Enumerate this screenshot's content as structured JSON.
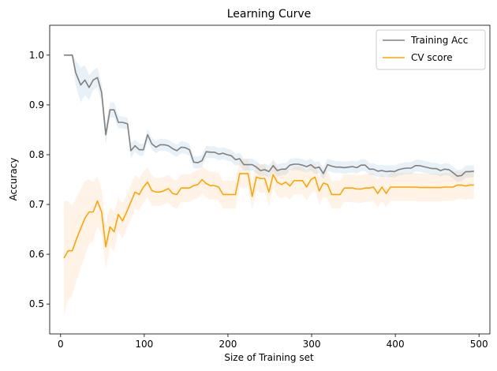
{
  "chart_data": {
    "type": "line",
    "title": "Learning Curve",
    "xlabel": "Size of Training set",
    "ylabel": "Accuracy",
    "xlim": [
      -13,
      513
    ],
    "ylim": [
      0.44,
      1.06
    ],
    "xticks": [
      0,
      100,
      200,
      300,
      400,
      500
    ],
    "yticks": [
      0.5,
      0.6,
      0.7,
      0.8,
      0.9,
      1.0
    ],
    "grid": false,
    "legend_position": "top-right",
    "series": [
      {
        "name": "Training Acc",
        "color": "#808080",
        "band_color": "#1f77b4",
        "points": [
          [
            4,
            1.0
          ],
          [
            8,
            1.0
          ],
          [
            14,
            1.0
          ],
          [
            18,
            0.965
          ],
          [
            24,
            0.94
          ],
          [
            29,
            0.95
          ],
          [
            34,
            0.935
          ],
          [
            39,
            0.95
          ],
          [
            44,
            0.955
          ],
          [
            49,
            0.925
          ],
          [
            54,
            0.84
          ],
          [
            59,
            0.89
          ],
          [
            64,
            0.89
          ],
          [
            69,
            0.865
          ],
          [
            74,
            0.865
          ],
          [
            80,
            0.862
          ],
          [
            84,
            0.808
          ],
          [
            89,
            0.818
          ],
          [
            94,
            0.81
          ],
          [
            99,
            0.81
          ],
          [
            104,
            0.84
          ],
          [
            109,
            0.822
          ],
          [
            114,
            0.815
          ],
          [
            119,
            0.82
          ],
          [
            124,
            0.82
          ],
          [
            129,
            0.818
          ],
          [
            134,
            0.812
          ],
          [
            139,
            0.808
          ],
          [
            144,
            0.815
          ],
          [
            149,
            0.814
          ],
          [
            154,
            0.81
          ],
          [
            159,
            0.785
          ],
          [
            164,
            0.784
          ],
          [
            169,
            0.788
          ],
          [
            174,
            0.806
          ],
          [
            179,
            0.805
          ],
          [
            184,
            0.805
          ],
          [
            189,
            0.801
          ],
          [
            194,
            0.803
          ],
          [
            199,
            0.8
          ],
          [
            204,
            0.798
          ],
          [
            209,
            0.79
          ],
          [
            214,
            0.792
          ],
          [
            219,
            0.78
          ],
          [
            224,
            0.78
          ],
          [
            229,
            0.78
          ],
          [
            234,
            0.775
          ],
          [
            239,
            0.768
          ],
          [
            244,
            0.77
          ],
          [
            249,
            0.766
          ],
          [
            254,
            0.778
          ],
          [
            259,
            0.768
          ],
          [
            264,
            0.771
          ],
          [
            269,
            0.771
          ],
          [
            274,
            0.779
          ],
          [
            279,
            0.781
          ],
          [
            284,
            0.781
          ],
          [
            289,
            0.779
          ],
          [
            294,
            0.776
          ],
          [
            299,
            0.78
          ],
          [
            304,
            0.773
          ],
          [
            309,
            0.775
          ],
          [
            314,
            0.762
          ],
          [
            319,
            0.78
          ],
          [
            324,
            0.777
          ],
          [
            329,
            0.775
          ],
          [
            334,
            0.775
          ],
          [
            339,
            0.774
          ],
          [
            344,
            0.775
          ],
          [
            349,
            0.776
          ],
          [
            354,
            0.774
          ],
          [
            359,
            0.779
          ],
          [
            364,
            0.779
          ],
          [
            369,
            0.771
          ],
          [
            374,
            0.771
          ],
          [
            379,
            0.767
          ],
          [
            384,
            0.768
          ],
          [
            389,
            0.766
          ],
          [
            394,
            0.767
          ],
          [
            399,
            0.766
          ],
          [
            404,
            0.77
          ],
          [
            409,
            0.772
          ],
          [
            414,
            0.773
          ],
          [
            419,
            0.773
          ],
          [
            424,
            0.778
          ],
          [
            429,
            0.778
          ],
          [
            434,
            0.776
          ],
          [
            439,
            0.774
          ],
          [
            444,
            0.772
          ],
          [
            449,
            0.772
          ],
          [
            454,
            0.768
          ],
          [
            459,
            0.771
          ],
          [
            464,
            0.77
          ],
          [
            469,
            0.764
          ],
          [
            474,
            0.757
          ],
          [
            479,
            0.758
          ],
          [
            484,
            0.766
          ],
          [
            489,
            0.766
          ],
          [
            494,
            0.767
          ]
        ],
        "band_halfwidth": [
          0.001,
          0.001,
          0.003,
          0.025,
          0.035,
          0.03,
          0.025,
          0.02,
          0.02,
          0.02,
          0.02,
          0.015,
          0.015,
          0.012,
          0.012,
          0.012,
          0.015,
          0.012,
          0.012,
          0.012,
          0.012,
          0.012,
          0.012,
          0.012,
          0.012,
          0.012,
          0.012,
          0.012,
          0.012,
          0.012,
          0.012,
          0.012,
          0.012,
          0.012,
          0.012,
          0.012,
          0.012,
          0.012,
          0.012,
          0.012,
          0.012,
          0.012,
          0.012,
          0.012,
          0.012,
          0.012,
          0.012,
          0.012,
          0.012,
          0.012,
          0.012,
          0.012,
          0.012,
          0.012,
          0.012,
          0.012,
          0.012,
          0.012,
          0.012,
          0.012,
          0.012,
          0.012,
          0.012,
          0.012,
          0.012,
          0.012,
          0.012,
          0.012,
          0.012,
          0.012,
          0.012,
          0.012,
          0.012,
          0.012,
          0.012,
          0.012,
          0.012,
          0.012,
          0.012,
          0.012,
          0.012,
          0.012,
          0.012,
          0.012,
          0.012,
          0.012,
          0.012,
          0.012,
          0.012,
          0.012,
          0.012,
          0.012,
          0.012,
          0.012,
          0.012,
          0.012,
          0.012,
          0.012,
          0.012,
          0.012
        ]
      },
      {
        "name": "CV score",
        "color": "#ffa500",
        "band_color": "#ff8c1a",
        "points": [
          [
            4,
            0.592
          ],
          [
            9,
            0.607
          ],
          [
            14,
            0.607
          ],
          [
            19,
            0.63
          ],
          [
            24,
            0.652
          ],
          [
            29,
            0.672
          ],
          [
            34,
            0.685
          ],
          [
            39,
            0.685
          ],
          [
            44,
            0.707
          ],
          [
            49,
            0.685
          ],
          [
            54,
            0.615
          ],
          [
            59,
            0.655
          ],
          [
            64,
            0.645
          ],
          [
            69,
            0.68
          ],
          [
            74,
            0.667
          ],
          [
            79,
            0.685
          ],
          [
            84,
            0.705
          ],
          [
            89,
            0.725
          ],
          [
            94,
            0.72
          ],
          [
            99,
            0.735
          ],
          [
            104,
            0.745
          ],
          [
            109,
            0.728
          ],
          [
            114,
            0.725
          ],
          [
            119,
            0.725
          ],
          [
            124,
            0.728
          ],
          [
            129,
            0.732
          ],
          [
            134,
            0.722
          ],
          [
            139,
            0.72
          ],
          [
            144,
            0.733
          ],
          [
            149,
            0.733
          ],
          [
            154,
            0.733
          ],
          [
            159,
            0.738
          ],
          [
            164,
            0.74
          ],
          [
            169,
            0.75
          ],
          [
            174,
            0.742
          ],
          [
            179,
            0.738
          ],
          [
            184,
            0.738
          ],
          [
            189,
            0.735
          ],
          [
            194,
            0.72
          ],
          [
            199,
            0.72
          ],
          [
            204,
            0.72
          ],
          [
            209,
            0.72
          ],
          [
            214,
            0.762
          ],
          [
            219,
            0.762
          ],
          [
            224,
            0.762
          ],
          [
            229,
            0.716
          ],
          [
            234,
            0.755
          ],
          [
            239,
            0.752
          ],
          [
            244,
            0.752
          ],
          [
            249,
            0.725
          ],
          [
            254,
            0.76
          ],
          [
            259,
            0.745
          ],
          [
            264,
            0.74
          ],
          [
            269,
            0.745
          ],
          [
            274,
            0.737
          ],
          [
            279,
            0.748
          ],
          [
            284,
            0.748
          ],
          [
            289,
            0.748
          ],
          [
            294,
            0.735
          ],
          [
            299,
            0.75
          ],
          [
            304,
            0.755
          ],
          [
            309,
            0.727
          ],
          [
            314,
            0.743
          ],
          [
            319,
            0.74
          ],
          [
            324,
            0.72
          ],
          [
            329,
            0.72
          ],
          [
            334,
            0.72
          ],
          [
            339,
            0.733
          ],
          [
            344,
            0.733
          ],
          [
            349,
            0.733
          ],
          [
            354,
            0.731
          ],
          [
            359,
            0.731
          ],
          [
            364,
            0.733
          ],
          [
            369,
            0.733
          ],
          [
            374,
            0.735
          ],
          [
            379,
            0.722
          ],
          [
            384,
            0.735
          ],
          [
            389,
            0.722
          ],
          [
            394,
            0.735
          ],
          [
            399,
            0.735
          ],
          [
            404,
            0.735
          ],
          [
            409,
            0.735
          ],
          [
            414,
            0.735
          ],
          [
            419,
            0.735
          ],
          [
            424,
            0.735
          ],
          [
            429,
            0.734
          ],
          [
            434,
            0.734
          ],
          [
            439,
            0.734
          ],
          [
            444,
            0.734
          ],
          [
            449,
            0.734
          ],
          [
            454,
            0.734
          ],
          [
            459,
            0.735
          ],
          [
            464,
            0.735
          ],
          [
            469,
            0.735
          ],
          [
            474,
            0.739
          ],
          [
            479,
            0.739
          ],
          [
            484,
            0.737
          ],
          [
            489,
            0.739
          ],
          [
            494,
            0.739
          ]
        ],
        "band_halfwidth": [
          0.115,
          0.1,
          0.09,
          0.085,
          0.08,
          0.075,
          0.065,
          0.06,
          0.05,
          0.045,
          0.045,
          0.04,
          0.04,
          0.035,
          0.035,
          0.035,
          0.035,
          0.035,
          0.032,
          0.032,
          0.03,
          0.03,
          0.028,
          0.028,
          0.028,
          0.028,
          0.028,
          0.028,
          0.028,
          0.028,
          0.028,
          0.028,
          0.028,
          0.028,
          0.028,
          0.028,
          0.028,
          0.028,
          0.028,
          0.028,
          0.028,
          0.028,
          0.028,
          0.028,
          0.028,
          0.028,
          0.028,
          0.028,
          0.028,
          0.028,
          0.028,
          0.028,
          0.028,
          0.028,
          0.028,
          0.028,
          0.028,
          0.028,
          0.028,
          0.028,
          0.028,
          0.028,
          0.028,
          0.028,
          0.028,
          0.028,
          0.028,
          0.028,
          0.028,
          0.028,
          0.028,
          0.028,
          0.028,
          0.028,
          0.028,
          0.028,
          0.028,
          0.028,
          0.028,
          0.028,
          0.028,
          0.028,
          0.028,
          0.028,
          0.028,
          0.028,
          0.028,
          0.028,
          0.028,
          0.028,
          0.028,
          0.028,
          0.028,
          0.028,
          0.028,
          0.028,
          0.028,
          0.028,
          0.028,
          0.028
        ]
      }
    ]
  }
}
